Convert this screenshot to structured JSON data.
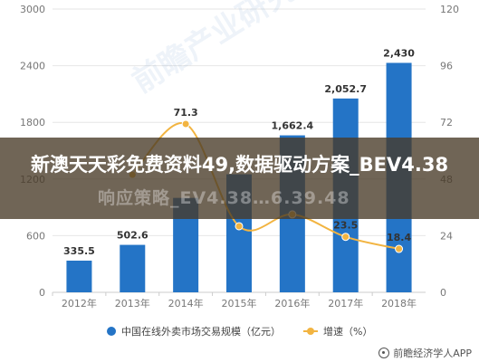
{
  "overlay": {
    "title": "新澳天天彩免费资料49,数据驱动方案_BEV4.38",
    "subtitle": "响应策略_EV4.38…6.39.48"
  },
  "watermark": "前瞻产业研究院",
  "source": "前瞻经济学人APP",
  "colors": {
    "bar": "#2474c6",
    "line": "#f2b441",
    "grid": "#e6e6e6",
    "axis": "#cccccc"
  },
  "chart_data": {
    "type": "bar",
    "categories": [
      "2012年",
      "2013年",
      "2014年",
      "2015年",
      "2016年",
      "2017年",
      "2018年"
    ],
    "series": [
      {
        "name": "中国在线外卖市场交易规模（亿元）",
        "type": "bar",
        "axis": "left",
        "values": [
          335.5,
          502.6,
          1000,
          1250,
          1662.4,
          2052.7,
          2430
        ],
        "labels": [
          "335.5",
          "502.6",
          "",
          "",
          "1,662.4",
          "2,052.7",
          "2,430"
        ]
      },
      {
        "name": "增速（%）",
        "type": "line",
        "axis": "right",
        "values": [
          null,
          49.8,
          71.3,
          28,
          33,
          23.5,
          18.4
        ],
        "labels": [
          "",
          "",
          "71.3",
          "",
          "",
          "23.5",
          "18.4"
        ]
      }
    ],
    "ylim_left": [
      0,
      3000
    ],
    "yticks_left": [
      "0",
      "600",
      "1200",
      "1800",
      "2400",
      "3000"
    ],
    "ylim_right": [
      0,
      120
    ],
    "yticks_right": [
      "0",
      "24",
      "48",
      "72",
      "96",
      "120"
    ],
    "grid": true,
    "legend": "bottom"
  }
}
